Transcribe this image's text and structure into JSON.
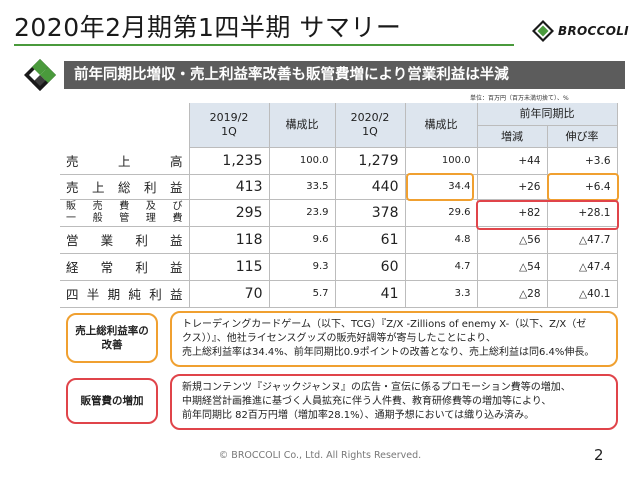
{
  "header": {
    "title": "2020年2月期第1四半期 サマリー",
    "logo_text": "BROCCOLI"
  },
  "headline": "前年同期比増収・売上利益率改善も販管費増により営業利益は半減",
  "unit_note": "単位：百万円（百万未満切捨て）、%",
  "table": {
    "header": {
      "prev_period": [
        "2019/2",
        "1Q"
      ],
      "prev_ratio": "構成比",
      "curr_period": [
        "2020/2",
        "1Q"
      ],
      "curr_ratio": "構成比",
      "yoy_group": "前年同期比",
      "yoy_change": "増減",
      "yoy_growth": "伸び率"
    },
    "rows": [
      {
        "label": "売上高",
        "prev": "1,235",
        "prev_ratio": "100.0",
        "curr": "1,279",
        "curr_ratio": "100.0",
        "change": "+44",
        "growth": "+3.6"
      },
      {
        "label": "売上総利益",
        "prev": "413",
        "prev_ratio": "33.5",
        "curr": "440",
        "curr_ratio": "34.4",
        "change": "+26",
        "growth": "+6.4"
      },
      {
        "label_lines": [
          "販売費及び",
          "一般管理費"
        ],
        "prev": "295",
        "prev_ratio": "23.9",
        "curr": "378",
        "curr_ratio": "29.6",
        "change": "+82",
        "growth": "+28.1"
      },
      {
        "label": "営業利益",
        "prev": "118",
        "prev_ratio": "9.6",
        "curr": "61",
        "curr_ratio": "4.8",
        "change": "△56",
        "growth": "△47.7"
      },
      {
        "label": "経常利益",
        "prev": "115",
        "prev_ratio": "9.3",
        "curr": "60",
        "curr_ratio": "4.7",
        "change": "△54",
        "growth": "△47.4"
      },
      {
        "label": "四半期純利益",
        "prev": "70",
        "prev_ratio": "5.7",
        "curr": "41",
        "curr_ratio": "3.3",
        "change": "△28",
        "growth": "△40.1"
      }
    ]
  },
  "notes": [
    {
      "label_lines": [
        "売上総利益率の",
        "改善"
      ],
      "text_lines": [
        "トレーディングカードゲーム（以下、TCG）『Z/X -Zillions of enemy X-（以下、Z/X（ゼ",
        "クス））』、他社ライセンスグッズの販売好調等が寄与したことにより、",
        "売上総利益率は34.4%、前年同期比0.9ポイントの改善となり、売上総利益は同6.4%伸長。"
      ],
      "accent": "#f0a030"
    },
    {
      "label_lines": [
        "販管費の増加"
      ],
      "text_lines": [
        "新規コンテンツ『ジャックジャンヌ』の広告・宣伝に係るプロモーション費等の増加、",
        "中期経営計画推進に基づく人員拡充に伴う人件費、教育研修費等の増加等により、",
        "前年同期比 82百万円増（増加率28.1%）、通期予想においては織り込み済み。"
      ],
      "accent": "#e0444a"
    }
  ],
  "footer": {
    "copyright": "© BROCCOLI Co., Ltd. All Rights Reserved.",
    "page_number": "2"
  },
  "colors": {
    "brand_green": "#4a9a3c",
    "headline_bg": "#5c5c5c",
    "table_header_bg": "#dde5ee",
    "highlight_orange": "#f0a030",
    "highlight_red": "#e0444a"
  }
}
